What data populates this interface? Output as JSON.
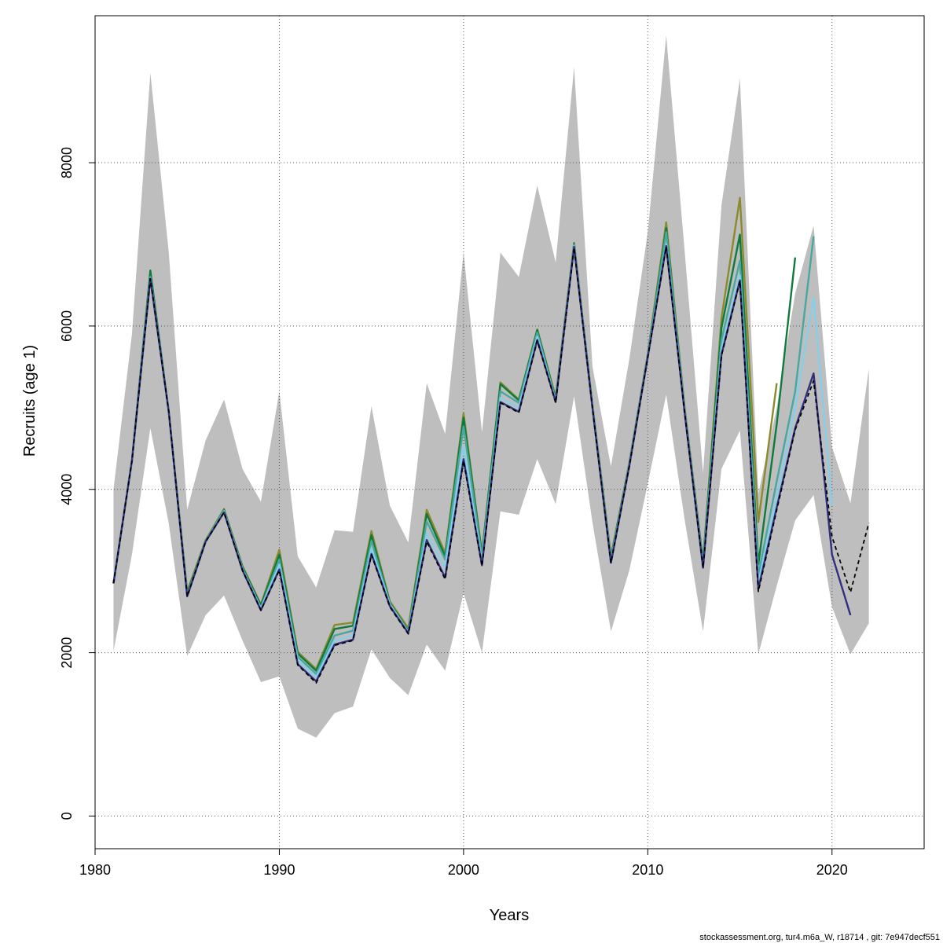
{
  "chart_data": {
    "type": "line",
    "title": "",
    "xlabel": "Years",
    "ylabel": "Recruits (age 1)",
    "xlim": [
      1980,
      2025
    ],
    "ylim": [
      -400,
      9800
    ],
    "xticks": [
      1980,
      1990,
      2000,
      2010,
      2020
    ],
    "yticks": [
      0,
      2000,
      4000,
      6000,
      8000
    ],
    "grid": true,
    "footer": "stockassessment.org, tur4.m6a_W, r18714 , git: 7e947decf551",
    "ci_band": {
      "x": [
        1981,
        1982,
        1983,
        1984,
        1985,
        1986,
        1987,
        1988,
        1989,
        1990,
        1991,
        1992,
        1993,
        1994,
        1995,
        1996,
        1997,
        1998,
        1999,
        2000,
        2001,
        2002,
        2003,
        2004,
        2005,
        2006,
        2007,
        2008,
        2009,
        2010,
        2011,
        2012,
        2013,
        2014,
        2015,
        2016,
        2017,
        2018,
        2019,
        2020,
        2021,
        2022
      ],
      "upper": [
        4000,
        5900,
        9100,
        6900,
        3750,
        4600,
        5100,
        4250,
        3850,
        5200,
        3180,
        2800,
        3500,
        3480,
        5020,
        3800,
        3350,
        5300,
        4680,
        6900,
        4700,
        6900,
        6600,
        7720,
        6780,
        9170,
        5500,
        4280,
        5600,
        7150,
        9560,
        6920,
        4200,
        7480,
        9030,
        3950,
        5000,
        6400,
        7230,
        4520,
        3830,
        5480
      ],
      "lower": [
        2020,
        3200,
        4750,
        3580,
        1960,
        2460,
        2700,
        2150,
        1640,
        1710,
        1070,
        960,
        1260,
        1340,
        2040,
        1690,
        1480,
        2100,
        1780,
        2730,
        2000,
        3730,
        3690,
        4370,
        3820,
        5140,
        3590,
        2260,
        3010,
        4070,
        5160,
        3630,
        2260,
        4250,
        4720,
        1980,
        2820,
        3620,
        3930,
        2560,
        1980,
        2360
      ],
      "color": "#bebebe"
    },
    "series": [
      {
        "color": "#8b8b2e",
        "dashed": false,
        "x": [
          1981,
          1982,
          1983,
          1984,
          1985,
          1986,
          1987,
          1988,
          1989,
          1990,
          1991,
          1992,
          1993,
          1994,
          1995,
          1996,
          1997,
          1998,
          1999,
          2000,
          2001,
          2002,
          2003,
          2004,
          2005,
          2006,
          2007,
          2008,
          2009,
          2010,
          2011,
          2012,
          2013,
          2014,
          2015,
          2016,
          2017
        ],
        "y": [
          2850,
          4350,
          6620,
          4950,
          2750,
          3380,
          3760,
          3060,
          2590,
          3260,
          2010,
          1800,
          2340,
          2370,
          3490,
          2630,
          2300,
          3750,
          3220,
          4930,
          3220,
          5310,
          5100,
          5960,
          5130,
          7020,
          5030,
          3180,
          4330,
          5660,
          7270,
          5000,
          3120,
          6100,
          7570,
          3600,
          5300
        ]
      },
      {
        "color": "#0e7a3c",
        "dashed": false,
        "x": [
          1981,
          1982,
          1983,
          1984,
          1985,
          1986,
          1987,
          1988,
          1989,
          1990,
          1991,
          1992,
          1993,
          1994,
          1995,
          1996,
          1997,
          1998,
          1999,
          2000,
          2001,
          2002,
          2003,
          2004,
          2005,
          2006,
          2007,
          2008,
          2009,
          2010,
          2011,
          2012,
          2013,
          2014,
          2015,
          2016,
          2017,
          2018
        ],
        "y": [
          2850,
          4350,
          6680,
          4950,
          2730,
          3370,
          3750,
          3050,
          2580,
          3200,
          1990,
          1780,
          2290,
          2330,
          3440,
          2610,
          2270,
          3700,
          3180,
          4880,
          3200,
          5290,
          5090,
          5950,
          5110,
          7010,
          5020,
          3160,
          4320,
          5650,
          7200,
          4980,
          3110,
          5980,
          7120,
          3080,
          4800,
          6840
        ]
      },
      {
        "color": "#48a8a0",
        "dashed": false,
        "x": [
          1981,
          1982,
          1983,
          1984,
          1985,
          1986,
          1987,
          1988,
          1989,
          1990,
          1991,
          1992,
          1993,
          1994,
          1995,
          1996,
          1997,
          1998,
          1999,
          2000,
          2001,
          2002,
          2003,
          2004,
          2005,
          2006,
          2007,
          2008,
          2009,
          2010,
          2011,
          2012,
          2013,
          2014,
          2015,
          2016,
          2017,
          2018,
          2019
        ],
        "y": [
          2850,
          4350,
          6600,
          4950,
          2700,
          3370,
          3740,
          3030,
          2550,
          3140,
          1950,
          1740,
          2210,
          2270,
          3370,
          2600,
          2260,
          3610,
          3140,
          4770,
          3170,
          5200,
          5060,
          5920,
          5090,
          7000,
          5010,
          3140,
          4310,
          5640,
          7150,
          4970,
          3080,
          5830,
          6800,
          2950,
          4100,
          5200,
          7100
        ]
      },
      {
        "color": "#87ceeb",
        "dashed": false,
        "x": [
          1981,
          1982,
          1983,
          1984,
          1985,
          1986,
          1987,
          1988,
          1989,
          1990,
          1991,
          1992,
          1993,
          1994,
          1995,
          1996,
          1997,
          1998,
          1999,
          2000,
          2001,
          2002,
          2003,
          2004,
          2005,
          2006,
          2007,
          2008,
          2009,
          2010,
          2011,
          2012,
          2013,
          2014,
          2015,
          2016,
          2017,
          2018,
          2019,
          2020
        ],
        "y": [
          2850,
          4350,
          6590,
          4950,
          2700,
          3360,
          3730,
          3020,
          2540,
          3080,
          1900,
          1700,
          2150,
          2210,
          3280,
          2590,
          2250,
          3460,
          3040,
          4520,
          3100,
          5120,
          5000,
          5870,
          5080,
          6980,
          5000,
          3110,
          4300,
          5630,
          7000,
          4950,
          3050,
          5720,
          6620,
          2850,
          3900,
          5000,
          6350,
          3800
        ]
      },
      {
        "color": "#30307f",
        "dashed": false,
        "x": [
          1981,
          1982,
          1983,
          1984,
          1985,
          1986,
          1987,
          1988,
          1989,
          1990,
          1991,
          1992,
          1993,
          1994,
          1995,
          1996,
          1997,
          1998,
          1999,
          2000,
          2001,
          2002,
          2003,
          2004,
          2005,
          2006,
          2007,
          2008,
          2009,
          2010,
          2011,
          2012,
          2013,
          2014,
          2015,
          2016,
          2017,
          2018,
          2019,
          2020,
          2021
        ],
        "y": [
          2850,
          4350,
          6580,
          4950,
          2690,
          3360,
          3720,
          3010,
          2520,
          3020,
          1860,
          1650,
          2100,
          2160,
          3210,
          2570,
          2240,
          3380,
          2920,
          4370,
          3070,
          5070,
          4950,
          5830,
          5070,
          6970,
          4990,
          3100,
          4290,
          5620,
          6980,
          4940,
          3040,
          5650,
          6560,
          2780,
          3780,
          4750,
          5420,
          3200,
          2460
        ]
      },
      {
        "color": "#000000",
        "dashed": true,
        "x": [
          1981,
          1982,
          1983,
          1984,
          1985,
          1986,
          1987,
          1988,
          1989,
          1990,
          1991,
          1992,
          1993,
          1994,
          1995,
          1996,
          1997,
          1998,
          1999,
          2000,
          2001,
          2002,
          2003,
          2004,
          2005,
          2006,
          2007,
          2008,
          2009,
          2010,
          2011,
          2012,
          2013,
          2014,
          2015,
          2016,
          2017,
          2018,
          2019,
          2020,
          2021,
          2022
        ],
        "y": [
          2850,
          4350,
          6580,
          4950,
          2690,
          3360,
          3720,
          3010,
          2520,
          3010,
          1850,
          1630,
          2090,
          2150,
          3200,
          2560,
          2230,
          3360,
          2900,
          4350,
          3060,
          5060,
          4940,
          5820,
          5060,
          6960,
          4990,
          3100,
          4290,
          5620,
          6970,
          4940,
          3040,
          5640,
          6550,
          2750,
          3750,
          4730,
          5330,
          3420,
          2740,
          3590
        ]
      }
    ]
  }
}
